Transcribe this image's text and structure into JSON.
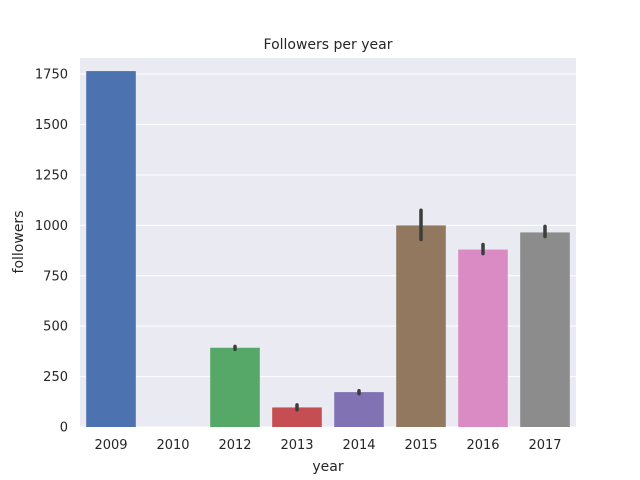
{
  "chart_data": {
    "type": "bar",
    "title": "Followers per year",
    "xlabel": "year",
    "ylabel": "followers",
    "categories": [
      "2009",
      "2010",
      "2012",
      "2013",
      "2014",
      "2015",
      "2016",
      "2017"
    ],
    "values": [
      1765,
      0,
      393,
      97,
      173,
      1000,
      880,
      965
    ],
    "error_bars": [
      null,
      null,
      [
        385,
        400
      ],
      [
        85,
        110
      ],
      [
        165,
        180
      ],
      [
        930,
        1075
      ],
      [
        860,
        905
      ],
      [
        945,
        995
      ]
    ],
    "colors": [
      "#4c72b0",
      "#dd8452",
      "#55a868",
      "#c44e52",
      "#8172b3",
      "#937860",
      "#da8bc3",
      "#8c8c8c"
    ],
    "ylim": [
      0,
      1830
    ],
    "yticks": [
      0,
      250,
      500,
      750,
      1000,
      1250,
      1500,
      1750
    ],
    "grid": true,
    "background": "#eaeaf2"
  }
}
